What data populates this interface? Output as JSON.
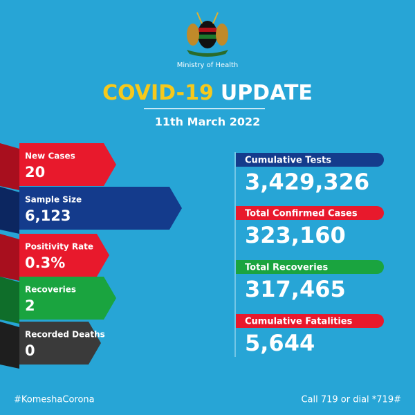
{
  "header": {
    "org": "Ministry of Health",
    "title_a": "COVID-19",
    "title_b": "UPDATE",
    "date": "11th March 2022"
  },
  "daily": [
    {
      "label": "New Cases",
      "value": "20"
    },
    {
      "label": "Sample Size",
      "value": "6,123"
    },
    {
      "label": "Positivity Rate",
      "value": "0.3%"
    },
    {
      "label": "Recoveries",
      "value": "2"
    },
    {
      "label": "Recorded Deaths",
      "value": "0"
    }
  ],
  "totals": [
    {
      "label": "Cumulative Tests",
      "value": "3,429,326"
    },
    {
      "label": "Total Confirmed Cases",
      "value": "323,160"
    },
    {
      "label": "Total Recoveries",
      "value": "317,465"
    },
    {
      "label": "Cumulative Fatalities",
      "value": "5,644"
    }
  ],
  "footer": {
    "hashtag": "#KomeshaCorona",
    "hotline": "Call 719 or dial *719#"
  }
}
